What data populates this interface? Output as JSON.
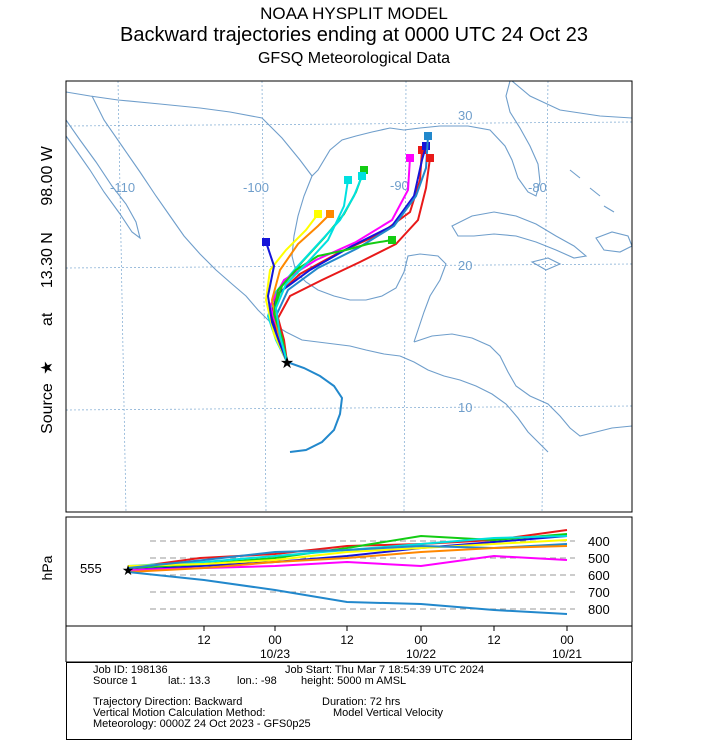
{
  "header": {
    "title": "NOAA HYSPLIT MODEL",
    "subtitle": "Backward trajectories ending at 0000 UTC 24 Oct 23",
    "meteorology": "GFSQ Meteorological Data"
  },
  "source_label": {
    "source": "Source",
    "at": "at",
    "lat": "13.30 N",
    "lon": "98.00 W"
  },
  "map": {
    "lon_labels": [
      "-110",
      "-100",
      "-90",
      "-80"
    ],
    "lat_labels": [
      "30",
      "20",
      "10"
    ],
    "colors": {
      "land": "#6f9ecb",
      "grid": "#7aa7d0",
      "labels": "#6f9ecb",
      "frame": "#000000"
    }
  },
  "height_panel": {
    "axis_label": "hPa",
    "source_pressure": "555",
    "pressure_ticks": [
      "400",
      "500",
      "600",
      "700",
      "800"
    ],
    "time_ticks": [
      "12",
      "00",
      "12",
      "00",
      "12",
      "00"
    ],
    "date_labels": [
      "10/23",
      "10/22",
      "10/21"
    ]
  },
  "info": {
    "job_id": "Job ID: 198136",
    "job_start": "Job Start: Thu Mar  7 18:54:39 UTC 2024",
    "source": "Source 1",
    "lat": "lat.: 13.3",
    "lon": "lon.: -98",
    "height": "height: 5000 m AMSL",
    "direction": "Trajectory Direction: Backward",
    "duration": "Duration: 72 hrs",
    "vertical_method": "Vertical Motion Calculation Method:",
    "vertical_value": "Model Vertical Velocity",
    "meteo": "Meteorology: 0000Z 24 Oct 2023 - GFS0p25"
  },
  "trajectory_colors": [
    "#e81919",
    "#1515d8",
    "#13cc13",
    "#00e0e0",
    "#ff00ff",
    "#ffff00",
    "#2288cc",
    "#ff8800",
    "#000000"
  ]
}
